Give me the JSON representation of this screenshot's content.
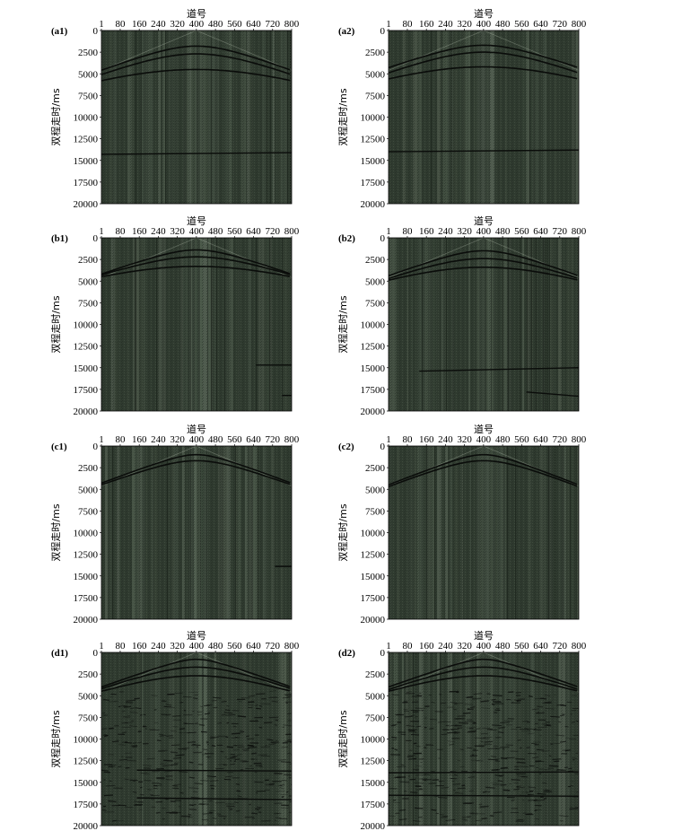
{
  "figure": {
    "panels": [
      {
        "id": "a1",
        "label": "(a1)"
      },
      {
        "id": "a2",
        "label": "(a2)"
      },
      {
        "id": "b1",
        "label": "(b1)"
      },
      {
        "id": "b2",
        "label": "(b2)"
      },
      {
        "id": "c1",
        "label": "(c1)"
      },
      {
        "id": "c2",
        "label": "(c2)"
      },
      {
        "id": "d1",
        "label": "(d1)"
      },
      {
        "id": "d2",
        "label": "(d2)"
      }
    ],
    "colors": {
      "background": "#2f3a2f",
      "stripe_light": "#7c8a78",
      "event": "#0a0c0a"
    }
  },
  "chart_data": {
    "type": "heatmap",
    "xlabel": "道号",
    "ylabel": "双程走时/ms",
    "x_ticks": [
      "1",
      "80",
      "160",
      "240",
      "320",
      "400",
      "480",
      "560",
      "640",
      "720",
      "800"
    ],
    "y_ticks": [
      "0",
      "2500",
      "5000",
      "7500",
      "10000",
      "12500",
      "15000",
      "17500",
      "20000"
    ],
    "xlim": [
      1,
      800
    ],
    "ylim": [
      0,
      20000
    ],
    "y_inverted": true,
    "panels": [
      {
        "id": "a1",
        "events": [
          {
            "type": "hyperbola",
            "apex_trace": 400,
            "apex_ms": 1800,
            "edge_ms": 4600
          },
          {
            "type": "hyperbola",
            "apex_trace": 400,
            "apex_ms": 2700,
            "edge_ms": 5100
          },
          {
            "type": "hyperbola",
            "apex_trace": 400,
            "apex_ms": 4500,
            "edge_ms": 5800
          },
          {
            "type": "line",
            "from_trace": 1,
            "to_trace": 800,
            "start_ms": 14300,
            "end_ms": 14100
          }
        ]
      },
      {
        "id": "a2",
        "events": [
          {
            "type": "hyperbola",
            "apex_trace": 400,
            "apex_ms": 1700,
            "edge_ms": 4300
          },
          {
            "type": "hyperbola",
            "apex_trace": 400,
            "apex_ms": 2500,
            "edge_ms": 4900
          },
          {
            "type": "hyperbola",
            "apex_trace": 400,
            "apex_ms": 4200,
            "edge_ms": 5600
          },
          {
            "type": "line",
            "from_trace": 1,
            "to_trace": 800,
            "start_ms": 14000,
            "end_ms": 13800
          }
        ]
      },
      {
        "id": "b1",
        "events": [
          {
            "type": "hyperbola",
            "apex_trace": 400,
            "apex_ms": 1400,
            "edge_ms": 4200
          },
          {
            "type": "hyperbola",
            "apex_trace": 400,
            "apex_ms": 2200,
            "edge_ms": 4300
          },
          {
            "type": "hyperbola",
            "apex_trace": 400,
            "apex_ms": 3300,
            "edge_ms": 4500
          },
          {
            "type": "line",
            "from_trace": 650,
            "to_trace": 800,
            "start_ms": 14700,
            "end_ms": 14700
          },
          {
            "type": "line",
            "from_trace": 760,
            "to_trace": 800,
            "start_ms": 18200,
            "end_ms": 18200
          }
        ]
      },
      {
        "id": "b2",
        "events": [
          {
            "type": "hyperbola",
            "apex_trace": 400,
            "apex_ms": 1500,
            "edge_ms": 4400
          },
          {
            "type": "hyperbola",
            "apex_trace": 400,
            "apex_ms": 2400,
            "edge_ms": 4700
          },
          {
            "type": "hyperbola",
            "apex_trace": 400,
            "apex_ms": 3400,
            "edge_ms": 4900
          },
          {
            "type": "line",
            "from_trace": 130,
            "to_trace": 800,
            "start_ms": 15400,
            "end_ms": 15000
          },
          {
            "type": "line",
            "from_trace": 580,
            "to_trace": 800,
            "start_ms": 17800,
            "end_ms": 18300
          }
        ]
      },
      {
        "id": "c1",
        "events": [
          {
            "type": "hyperbola",
            "apex_trace": 400,
            "apex_ms": 1000,
            "edge_ms": 4300
          },
          {
            "type": "hyperbola",
            "apex_trace": 400,
            "apex_ms": 1700,
            "edge_ms": 4500
          },
          {
            "type": "line",
            "from_trace": 730,
            "to_trace": 800,
            "start_ms": 13900,
            "end_ms": 13900
          }
        ]
      },
      {
        "id": "c2",
        "events": [
          {
            "type": "hyperbola",
            "apex_trace": 400,
            "apex_ms": 1000,
            "edge_ms": 4500
          },
          {
            "type": "hyperbola",
            "apex_trace": 400,
            "apex_ms": 1700,
            "edge_ms": 4700
          }
        ]
      },
      {
        "id": "d1",
        "events": [
          {
            "type": "hyperbola",
            "apex_trace": 400,
            "apex_ms": 800,
            "edge_ms": 4000
          },
          {
            "type": "hyperbola",
            "apex_trace": 400,
            "apex_ms": 1700,
            "edge_ms": 4200
          },
          {
            "type": "hyperbola",
            "apex_trace": 400,
            "apex_ms": 2700,
            "edge_ms": 4500
          },
          {
            "type": "line",
            "from_trace": 150,
            "to_trace": 800,
            "start_ms": 13600,
            "end_ms": 13700
          },
          {
            "type": "line",
            "from_trace": 150,
            "to_trace": 800,
            "start_ms": 16800,
            "end_ms": 17000
          }
        ]
      },
      {
        "id": "d2",
        "events": [
          {
            "type": "hyperbola",
            "apex_trace": 400,
            "apex_ms": 800,
            "edge_ms": 4000
          },
          {
            "type": "hyperbola",
            "apex_trace": 400,
            "apex_ms": 1700,
            "edge_ms": 4300
          },
          {
            "type": "hyperbola",
            "apex_trace": 400,
            "apex_ms": 2700,
            "edge_ms": 4500
          },
          {
            "type": "line",
            "from_trace": 1,
            "to_trace": 800,
            "start_ms": 13900,
            "end_ms": 13800
          },
          {
            "type": "line",
            "from_trace": 1,
            "to_trace": 800,
            "start_ms": 16500,
            "end_ms": 16600
          }
        ]
      }
    ]
  }
}
